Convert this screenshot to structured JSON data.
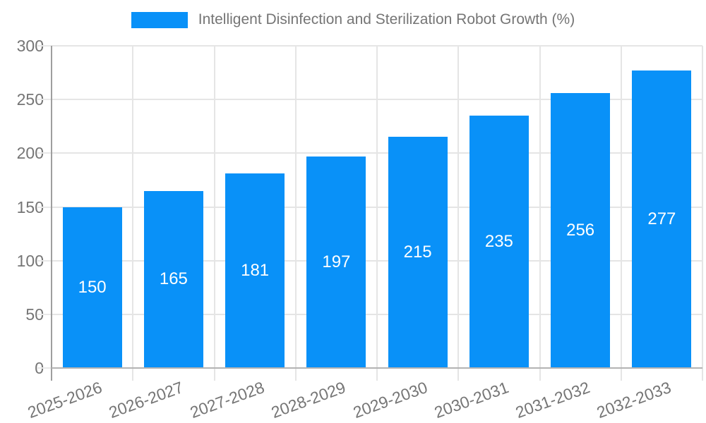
{
  "chart_data": {
    "type": "bar",
    "title": "",
    "legend": {
      "label": "Intelligent Disinfection and Sterilization Robot Growth (%)",
      "position": "top"
    },
    "categories": [
      "2025-2026",
      "2026-2027",
      "2027-2028",
      "2028-2029",
      "2029-2030",
      "2030-2031",
      "2031-2032",
      "2032-2033"
    ],
    "values": [
      150,
      165,
      181,
      197,
      215,
      235,
      256,
      277
    ],
    "xlabel": "",
    "ylabel": "",
    "ylim": [
      0,
      300
    ],
    "yticks": [
      0,
      50,
      100,
      150,
      200,
      250,
      300
    ],
    "grid": "both",
    "bar_color": "#0991f8",
    "value_label_color": "#ffffff",
    "axis_text_color": "#757575",
    "grid_color": "#e5e5e5",
    "y_axis_line_color": "#9e9e9e",
    "x_axis_line_color": "#b3b3b3"
  }
}
